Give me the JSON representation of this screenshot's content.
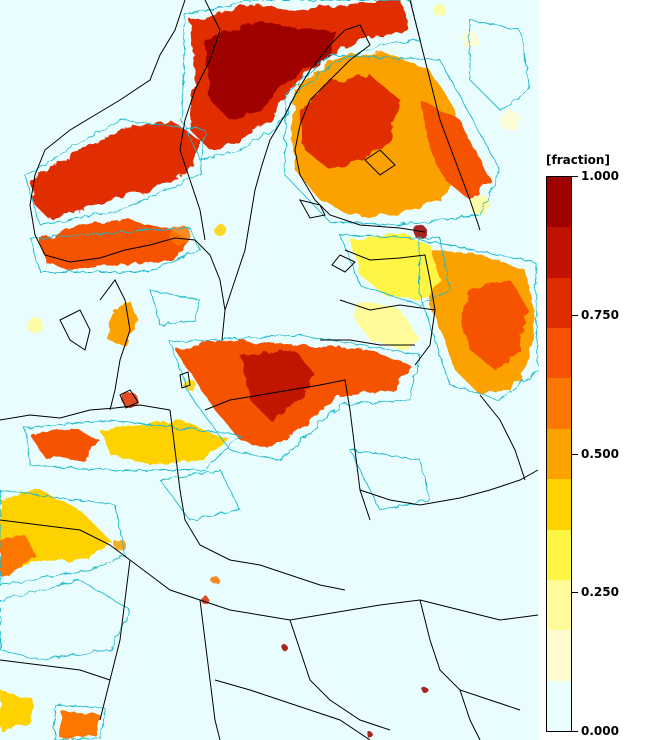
{
  "legend": {
    "title": "[fraction]",
    "labels": [
      "1.000",
      "0.750",
      "0.500",
      "0.250",
      "0.000"
    ],
    "label_values": [
      1.0,
      0.75,
      0.5,
      0.25,
      0.0
    ],
    "colors": [
      "#eafdfe",
      "#fffbd0",
      "#fffb9a",
      "#fff544",
      "#fdd200",
      "#fca200",
      "#fb7700",
      "#f55300",
      "#e02d00",
      "#c01200",
      "#9f0000"
    ]
  },
  "map": {
    "background_color": "#e9fdff",
    "boundary_color": "#000000",
    "contour_color": "#1ab8c8"
  }
}
